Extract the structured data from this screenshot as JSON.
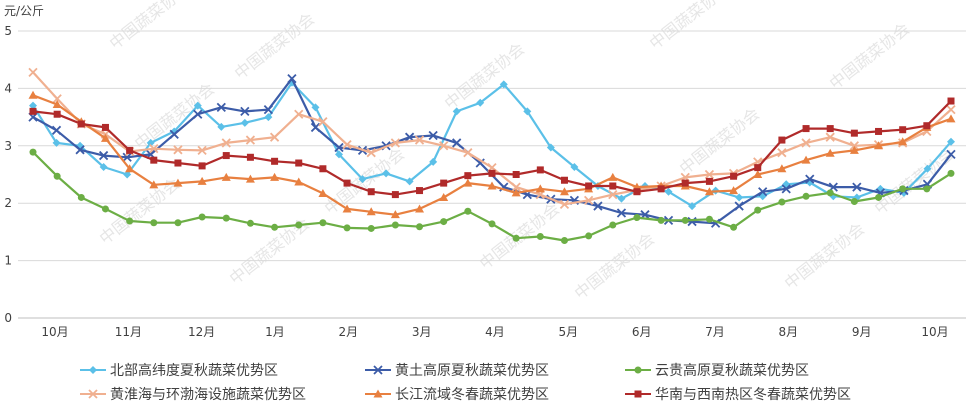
{
  "chart_data": {
    "type": "line",
    "ylabel": "元/公斤",
    "ylim": [
      0,
      5
    ],
    "yticks": [
      0,
      1,
      2,
      3,
      4,
      5
    ],
    "grid": true,
    "legend_position": "bottom",
    "watermark": "中国蔬菜协会",
    "months": [
      "10月",
      "11月",
      "12月",
      "1月",
      "2月",
      "3月",
      "4月",
      "5月",
      "6月",
      "7月",
      "8月",
      "9月",
      "10月"
    ],
    "series": [
      {
        "name": "北部高纬度夏秋蔬菜优势区",
        "color": "#5bc0e8",
        "marker": "diamond",
        "values": [
          3.7,
          3.05,
          3.0,
          2.63,
          2.5,
          3.05,
          3.25,
          3.7,
          3.33,
          3.4,
          3.5,
          4.1,
          3.67,
          2.85,
          2.42,
          2.52,
          2.38,
          2.72,
          3.6,
          3.75,
          4.07,
          3.6,
          2.97,
          2.63,
          2.3,
          2.08,
          2.3,
          2.2,
          1.95,
          2.22,
          2.1,
          2.12,
          2.33,
          2.36,
          2.12,
          2.1,
          2.25,
          2.18,
          2.6,
          3.07
        ]
      },
      {
        "name": "黄土高原夏秋蔬菜优势区",
        "color": "#3c5ca8",
        "marker": "x",
        "values": [
          3.5,
          3.27,
          2.93,
          2.83,
          2.8,
          2.85,
          3.2,
          3.55,
          3.67,
          3.6,
          3.63,
          4.17,
          3.32,
          2.97,
          2.92,
          3.0,
          3.15,
          3.18,
          3.05,
          2.7,
          2.28,
          2.15,
          2.07,
          2.05,
          1.95,
          1.83,
          1.8,
          1.7,
          1.68,
          1.65,
          1.95,
          2.2,
          2.25,
          2.42,
          2.28,
          2.28,
          2.18,
          2.22,
          2.33,
          2.85
        ]
      },
      {
        "name": "云贵高原夏秋蔬菜优势区",
        "color": "#6cae45",
        "marker": "circle",
        "values": [
          2.89,
          2.47,
          2.1,
          1.9,
          1.69,
          1.66,
          1.66,
          1.76,
          1.74,
          1.65,
          1.58,
          1.62,
          1.66,
          1.57,
          1.56,
          1.62,
          1.59,
          1.68,
          1.86,
          1.64,
          1.39,
          1.42,
          1.35,
          1.43,
          1.62,
          1.75,
          1.7,
          1.7,
          1.72,
          1.58,
          1.88,
          2.02,
          2.12,
          2.18,
          2.03,
          2.1,
          2.25,
          2.25,
          2.52
        ]
      },
      {
        "name": "黄淮海与环渤海设施蔬菜优势区",
        "color": "#f0b090",
        "marker": "x",
        "values": [
          4.28,
          3.82,
          3.38,
          3.2,
          2.9,
          2.95,
          2.93,
          2.92,
          3.05,
          3.1,
          3.15,
          3.55,
          3.42,
          3.02,
          2.88,
          3.05,
          3.1,
          3.0,
          2.88,
          2.62,
          2.28,
          2.15,
          1.98,
          2.05,
          2.15,
          2.23,
          2.3,
          2.45,
          2.5,
          2.52,
          2.72,
          2.88,
          3.05,
          3.15,
          3.0,
          3.02,
          3.05,
          3.25,
          3.63
        ]
      },
      {
        "name": "长江流域冬春蔬菜优势区",
        "color": "#e88040",
        "marker": "triangle",
        "values": [
          3.88,
          3.72,
          3.42,
          3.13,
          2.6,
          2.32,
          2.35,
          2.38,
          2.45,
          2.42,
          2.45,
          2.37,
          2.17,
          1.9,
          1.85,
          1.8,
          1.9,
          2.1,
          2.35,
          2.3,
          2.18,
          2.25,
          2.2,
          2.25,
          2.45,
          2.28,
          2.3,
          2.3,
          2.2,
          2.22,
          2.5,
          2.6,
          2.75,
          2.87,
          2.92,
          3.0,
          3.07,
          3.32,
          3.47
        ]
      },
      {
        "name": "华南与西南热区冬春蔬菜优势区",
        "color": "#b02a2a",
        "marker": "square",
        "values": [
          3.6,
          3.55,
          3.38,
          3.32,
          2.92,
          2.75,
          2.7,
          2.65,
          2.83,
          2.8,
          2.73,
          2.7,
          2.6,
          2.35,
          2.2,
          2.15,
          2.22,
          2.35,
          2.48,
          2.52,
          2.5,
          2.58,
          2.4,
          2.3,
          2.3,
          2.2,
          2.25,
          2.35,
          2.38,
          2.47,
          2.62,
          3.1,
          3.3,
          3.3,
          3.22,
          3.25,
          3.28,
          3.35,
          3.78
        ]
      }
    ]
  }
}
